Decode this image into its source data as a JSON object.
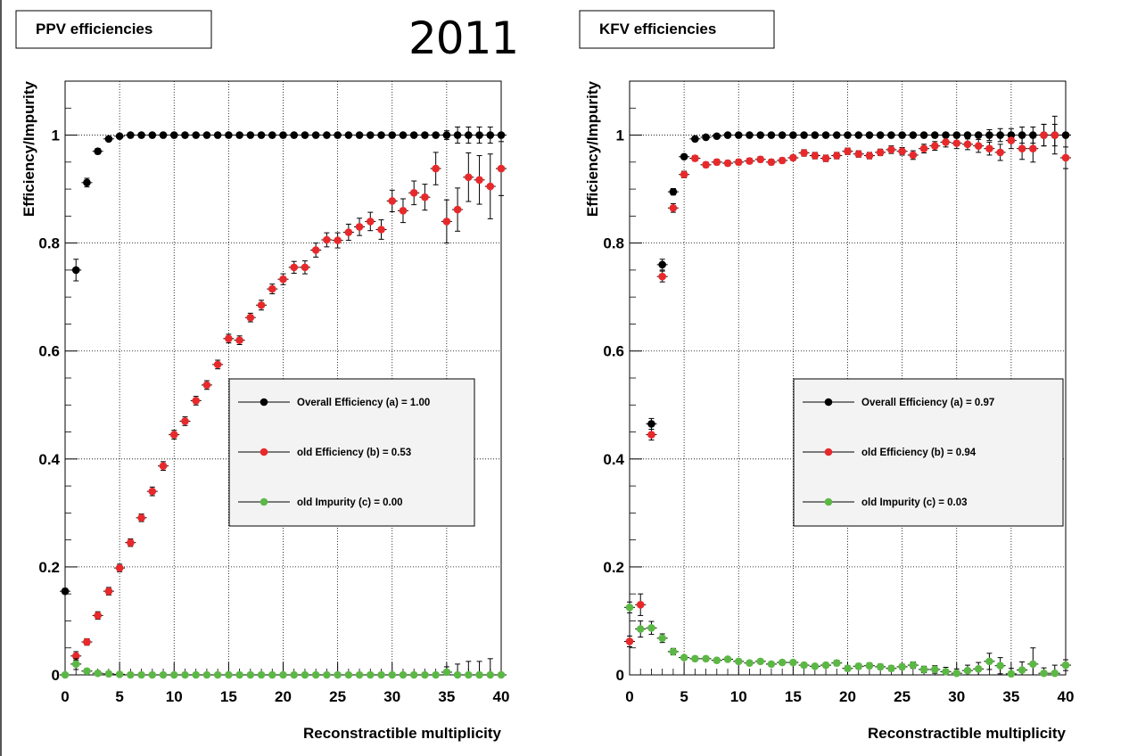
{
  "page_title": "2011",
  "chart_data": [
    {
      "type": "scatter",
      "title": "PPV efficiencies",
      "xlabel": "Reconstractible multiplicity",
      "ylabel": "Efficiency/Impurity",
      "xlim": [
        0,
        40
      ],
      "ylim": [
        0,
        1.1
      ],
      "xticks": [
        "0",
        "5",
        "10",
        "15",
        "20",
        "25",
        "30",
        "35",
        "40"
      ],
      "yticks": [
        "0",
        "0.2",
        "0.4",
        "0.6",
        "0.8",
        "1"
      ],
      "grid": true,
      "legend_position": "center-right",
      "series": [
        {
          "name": "Overall Efficiency (a) = 1.00",
          "color": "#000000",
          "x": [
            0,
            1,
            2,
            3,
            4,
            5,
            6,
            7,
            8,
            9,
            10,
            11,
            12,
            13,
            14,
            15,
            16,
            17,
            18,
            19,
            20,
            21,
            22,
            23,
            24,
            25,
            26,
            27,
            28,
            29,
            30,
            31,
            32,
            33,
            34,
            35,
            36,
            37,
            38,
            39,
            40
          ],
          "y": [
            0.155,
            0.75,
            0.912,
            0.97,
            0.993,
            0.998,
            1,
            1,
            1,
            1,
            1,
            1,
            1,
            1,
            1,
            1,
            1,
            1,
            1,
            1,
            1,
            1,
            1,
            1,
            1,
            1,
            1,
            1,
            1,
            1,
            1,
            1,
            1,
            1,
            1,
            1,
            1,
            1,
            1,
            1,
            1
          ],
          "err": [
            0.005,
            0.02,
            0.008,
            0.005,
            0.003,
            0.002,
            0,
            0,
            0,
            0,
            0,
            0,
            0,
            0,
            0,
            0,
            0,
            0,
            0,
            0,
            0,
            0,
            0,
            0,
            0,
            0,
            0,
            0,
            0,
            0,
            0,
            0,
            0,
            0,
            0,
            0.008,
            0.015,
            0.015,
            0.015,
            0.015,
            0
          ]
        },
        {
          "name": "old Efficiency (b) = 0.53",
          "color": "#e8292b",
          "x": [
            1,
            2,
            3,
            4,
            5,
            6,
            7,
            8,
            9,
            10,
            11,
            12,
            13,
            14,
            15,
            16,
            17,
            18,
            19,
            20,
            21,
            22,
            23,
            24,
            25,
            26,
            27,
            28,
            29,
            30,
            31,
            32,
            33,
            34,
            35,
            36,
            37,
            38,
            39,
            40
          ],
          "y": [
            0.035,
            0.061,
            0.11,
            0.155,
            0.198,
            0.245,
            0.291,
            0.34,
            0.387,
            0.445,
            0.47,
            0.508,
            0.537,
            0.575,
            0.623,
            0.62,
            0.662,
            0.685,
            0.715,
            0.733,
            0.755,
            0.755,
            0.787,
            0.806,
            0.805,
            0.82,
            0.83,
            0.84,
            0.825,
            0.878,
            0.86,
            0.893,
            0.885,
            0.938,
            0.84,
            0.862,
            0.922,
            0.917,
            0.905,
            0.938
          ],
          "err": [
            0.008,
            0.006,
            0.007,
            0.007,
            0.007,
            0.007,
            0.007,
            0.008,
            0.008,
            0.008,
            0.008,
            0.008,
            0.008,
            0.008,
            0.008,
            0.008,
            0.008,
            0.009,
            0.009,
            0.01,
            0.011,
            0.012,
            0.013,
            0.013,
            0.014,
            0.015,
            0.016,
            0.017,
            0.018,
            0.02,
            0.022,
            0.022,
            0.024,
            0.03,
            0.04,
            0.04,
            0.045,
            0.045,
            0.06,
            0.05
          ]
        },
        {
          "name": "old Impurity (c) = 0.00",
          "color": "#5cb845",
          "x": [
            0,
            1,
            2,
            3,
            4,
            5,
            6,
            7,
            8,
            9,
            10,
            11,
            12,
            13,
            14,
            15,
            16,
            17,
            18,
            19,
            20,
            21,
            22,
            23,
            24,
            25,
            26,
            27,
            28,
            29,
            30,
            31,
            32,
            33,
            34,
            35,
            36,
            37,
            38,
            39,
            40
          ],
          "y": [
            0,
            0.02,
            0.007,
            0.003,
            0.002,
            0.001,
            0,
            0,
            0,
            0,
            0,
            0,
            0,
            0,
            0,
            0,
            0,
            0,
            0,
            0,
            0,
            0,
            0,
            0,
            0,
            0,
            0,
            0,
            0,
            0,
            0,
            0,
            0,
            0,
            0,
            0.005,
            0,
            0,
            0,
            0,
            0
          ],
          "err": [
            0,
            0.01,
            0.004,
            0.002,
            0.002,
            0.001,
            0,
            0,
            0,
            0,
            0,
            0,
            0,
            0,
            0,
            0,
            0,
            0,
            0,
            0,
            0,
            0,
            0,
            0,
            0,
            0,
            0,
            0,
            0,
            0,
            0,
            0,
            0,
            0,
            0,
            0.01,
            0.02,
            0.025,
            0.025,
            0.03,
            0
          ]
        }
      ]
    },
    {
      "type": "scatter",
      "title": "KFV efficiencies",
      "xlabel": "Reconstractible multiplicity",
      "ylabel": "Efficiency/Impurity",
      "xlim": [
        0,
        40
      ],
      "ylim": [
        0,
        1.1
      ],
      "xticks": [
        "0",
        "5",
        "10",
        "15",
        "20",
        "25",
        "30",
        "35",
        "40"
      ],
      "yticks": [
        "0",
        "0.2",
        "0.4",
        "0.6",
        "0.8",
        "1"
      ],
      "grid": true,
      "legend_position": "center-right",
      "series": [
        {
          "name": "Overall Efficiency (a) = 0.97",
          "color": "#000000",
          "x": [
            2,
            3,
            4,
            5,
            6,
            7,
            8,
            9,
            10,
            11,
            12,
            13,
            14,
            15,
            16,
            17,
            18,
            19,
            20,
            21,
            22,
            23,
            24,
            25,
            26,
            27,
            28,
            29,
            30,
            31,
            32,
            33,
            34,
            35,
            36,
            37,
            38,
            39,
            40
          ],
          "y": [
            0.465,
            0.76,
            0.895,
            0.96,
            0.993,
            0.996,
            0.998,
            1,
            1,
            1,
            1,
            1,
            1,
            1,
            1,
            1,
            1,
            1,
            1,
            1,
            1,
            1,
            1,
            1,
            1,
            1,
            1,
            1,
            1,
            1,
            1,
            1,
            1,
            1,
            1,
            1,
            1,
            1,
            1
          ],
          "err": [
            0.01,
            0.01,
            0.006,
            0.004,
            0.003,
            0.002,
            0.002,
            0,
            0,
            0,
            0,
            0,
            0,
            0,
            0,
            0,
            0,
            0,
            0,
            0,
            0,
            0,
            0,
            0,
            0,
            0,
            0,
            0,
            0,
            0,
            0,
            0.01,
            0.012,
            0.012,
            0.015,
            0.015,
            0.02,
            0.02,
            0
          ]
        },
        {
          "name": "old Efficiency (b) = 0.94",
          "color": "#e8292b",
          "x": [
            0,
            1,
            2,
            3,
            4,
            5,
            6,
            7,
            8,
            9,
            10,
            11,
            12,
            13,
            14,
            15,
            16,
            17,
            18,
            19,
            20,
            21,
            22,
            23,
            24,
            25,
            26,
            27,
            28,
            29,
            30,
            31,
            32,
            33,
            34,
            35,
            36,
            37,
            38,
            39,
            40
          ],
          "y": [
            0.062,
            0.13,
            0.445,
            0.738,
            0.865,
            0.927,
            0.957,
            0.945,
            0.95,
            0.948,
            0.95,
            0.952,
            0.955,
            0.95,
            0.953,
            0.958,
            0.967,
            0.962,
            0.957,
            0.962,
            0.97,
            0.965,
            0.962,
            0.968,
            0.973,
            0.97,
            0.963,
            0.975,
            0.98,
            0.987,
            0.985,
            0.983,
            0.98,
            0.975,
            0.968,
            0.99,
            0.975,
            0.975,
            1.0,
            1.0,
            0.958
          ],
          "err": [
            0.01,
            0.02,
            0.01,
            0.01,
            0.008,
            0.006,
            0.005,
            0.005,
            0.005,
            0.005,
            0.005,
            0.005,
            0.005,
            0.005,
            0.005,
            0.005,
            0.006,
            0.006,
            0.006,
            0.006,
            0.006,
            0.006,
            0.006,
            0.006,
            0.007,
            0.007,
            0.008,
            0.008,
            0.008,
            0.009,
            0.01,
            0.01,
            0.012,
            0.012,
            0.015,
            0.015,
            0.02,
            0.025,
            0.02,
            0.035,
            0.02
          ]
        },
        {
          "name": "old Impurity (c) = 0.03",
          "color": "#5cb845",
          "x": [
            0,
            1,
            2,
            3,
            4,
            5,
            6,
            7,
            8,
            9,
            10,
            11,
            12,
            13,
            14,
            15,
            16,
            17,
            18,
            19,
            20,
            21,
            22,
            23,
            24,
            25,
            26,
            27,
            28,
            29,
            30,
            31,
            32,
            33,
            34,
            35,
            36,
            37,
            38,
            39,
            40
          ],
          "y": [
            0.125,
            0.085,
            0.087,
            0.068,
            0.043,
            0.032,
            0.03,
            0.03,
            0.027,
            0.029,
            0.025,
            0.022,
            0.025,
            0.02,
            0.023,
            0.023,
            0.018,
            0.016,
            0.018,
            0.022,
            0.012,
            0.016,
            0.017,
            0.015,
            0.012,
            0.015,
            0.018,
            0.01,
            0.01,
            0.006,
            0.003,
            0.008,
            0.011,
            0.025,
            0.017,
            0.002,
            0.009,
            0.02,
            0.003,
            0.003,
            0.018
          ],
          "err": [
            0.01,
            0.015,
            0.012,
            0.008,
            0.006,
            0.004,
            0.004,
            0.004,
            0.004,
            0.004,
            0.004,
            0.004,
            0.004,
            0.004,
            0.004,
            0.004,
            0.004,
            0.004,
            0.004,
            0.005,
            0.005,
            0.005,
            0.005,
            0.005,
            0.005,
            0.005,
            0.006,
            0.006,
            0.007,
            0.008,
            0.008,
            0.01,
            0.012,
            0.015,
            0.015,
            0.01,
            0.015,
            0.03,
            0.01,
            0.015,
            0.01
          ]
        }
      ]
    }
  ]
}
